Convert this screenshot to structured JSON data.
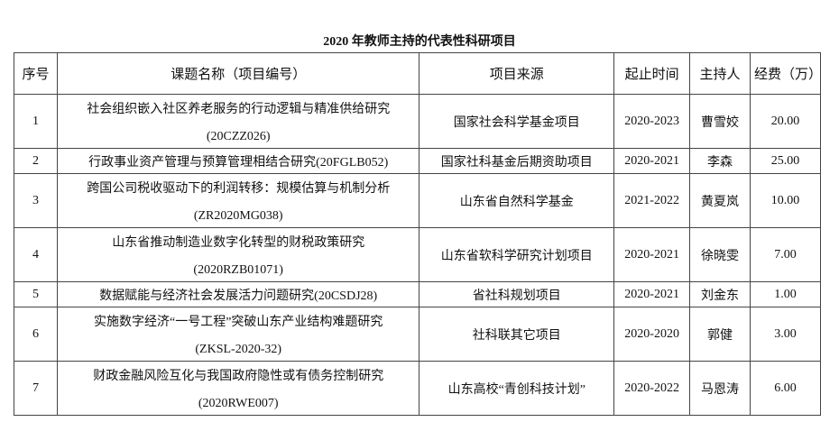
{
  "title": "2020 年教师主持的代表性科研项目",
  "headers": [
    "序号",
    "课题名称（项目编号）",
    "项目来源",
    "起止时间",
    "主持人",
    "经费（万）"
  ],
  "rows": [
    {
      "no": "1",
      "name": "社会组织嵌入社区养老服务的行动逻辑与精准供给研究",
      "code": "(20CZZ026)",
      "source": "国家社会科学基金项目",
      "period": "2020-2023",
      "host": "曹雪姣",
      "funding": "20.00"
    },
    {
      "no": "2",
      "name": "行政事业资产管理与预算管理相结合研究(20FGLB052)",
      "code": "",
      "source": "国家社科基金后期资助项目",
      "period": "2020-2021",
      "host": "李森",
      "funding": "25.00"
    },
    {
      "no": "3",
      "name": "跨国公司税收驱动下的利润转移：规模估算与机制分析",
      "code": "(ZR2020MG038)",
      "source": "山东省自然科学基金",
      "period": "2021-2022",
      "host": "黄夏岚",
      "funding": "10.00"
    },
    {
      "no": "4",
      "name": "山东省推动制造业数字化转型的财税政策研究",
      "code": "(2020RZB01071)",
      "source": "山东省软科学研究计划项目",
      "period": "2020-2021",
      "host": "徐晓雯",
      "funding": "7.00"
    },
    {
      "no": "5",
      "name": "数据赋能与经济社会发展活力问题研究(20CSDJ28)",
      "code": "",
      "source": "省社科规划项目",
      "period": "2020-2021",
      "host": "刘金东",
      "funding": "1.00"
    },
    {
      "no": "6",
      "name": "实施数字经济“一号工程”突破山东产业结构难题研究",
      "code": "(ZKSL-2020-32)",
      "source": "社科联其它项目",
      "period": "2020-2020",
      "host": "郭健",
      "funding": "3.00"
    },
    {
      "no": "7",
      "name": "财政金融风险互化与我国政府隐性或有债务控制研究",
      "code": "(2020RWE007)",
      "source": "山东高校“青创科技计划”",
      "period": "2020-2022",
      "host": "马恩涛",
      "funding": "6.00"
    }
  ]
}
